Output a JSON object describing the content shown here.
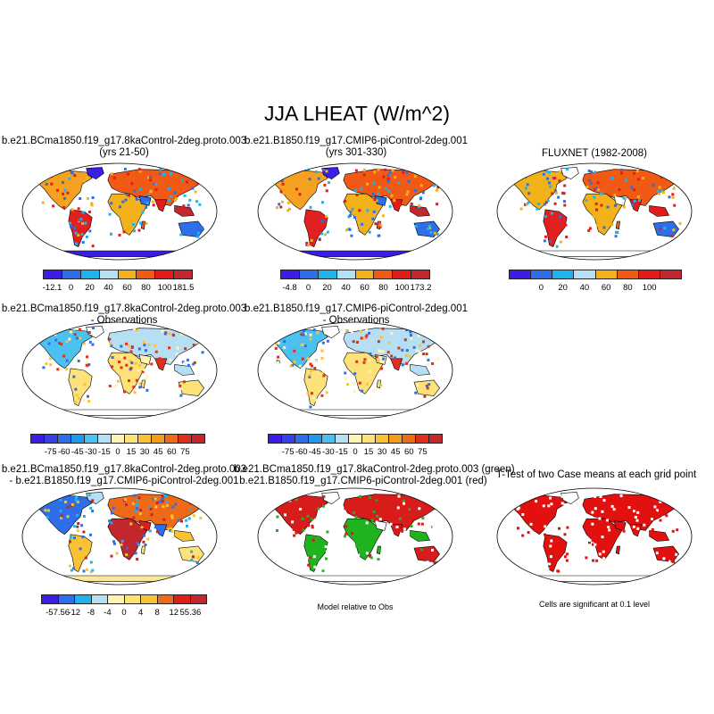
{
  "figure": {
    "title": "JJA LHEAT (W/m^2)"
  },
  "panels": [
    {
      "id": "p1",
      "title_lines": [
        "b.e21.BCma1850.f19_g17.8kaControl-2deg.proto.003",
        "(yrs 21-50)"
      ],
      "kind": "absolute",
      "ocean_fill": "#3a1ee6",
      "colorbar": {
        "colors": [
          "#3a1ee6",
          "#2e6ee8",
          "#1fb3ee",
          "#b7dff3",
          "#f3b21a",
          "#f05a15",
          "#e31b1b",
          "#c1272d"
        ],
        "labels": [
          "-12.1",
          "0",
          "20",
          "40",
          "60",
          "80",
          "100",
          "181.5"
        ]
      }
    },
    {
      "id": "p2",
      "title_lines": [
        "b.e21.B1850.f19_g17.CMIP6-piControl-2deg.001",
        "(yrs 301-330)"
      ],
      "kind": "absolute",
      "ocean_fill": "#3a1ee6",
      "colorbar": {
        "colors": [
          "#3a1ee6",
          "#2e6ee8",
          "#1fb3ee",
          "#b7dff3",
          "#f3b21a",
          "#f05a15",
          "#e31b1b",
          "#c1272d"
        ],
        "labels": [
          "-4.8",
          "0",
          "20",
          "40",
          "60",
          "80",
          "100",
          "173.2"
        ]
      }
    },
    {
      "id": "p3",
      "title_lines": [
        "FLUXNET (1982-2008)"
      ],
      "kind": "absolute",
      "ocean_fill": "none",
      "colorbar": {
        "colors": [
          "#3a1ee6",
          "#2e6ee8",
          "#1fb3ee",
          "#b7dff3",
          "#f3b21a",
          "#f05a15",
          "#e31b1b",
          "#c1272d"
        ],
        "labels": [
          "0",
          "20",
          "40",
          "60",
          "80",
          "100"
        ]
      }
    },
    {
      "id": "p4",
      "title_lines": [
        "b.e21.BCma1850.f19_g17.8kaControl-2deg.proto.003",
        "- Observations"
      ],
      "kind": "difference",
      "ocean_fill": "none",
      "colorbar": {
        "colors": [
          "#3a1ee6",
          "#3a40e8",
          "#2e6ee8",
          "#1f98ee",
          "#4cc1f0",
          "#b7dff3",
          "#fff4b3",
          "#fde27a",
          "#f8c235",
          "#f39b1b",
          "#ef6a16",
          "#e0301b",
          "#c1272d"
        ],
        "labels": [
          "-75",
          "-60",
          "-45",
          "-30",
          "-15",
          "0",
          "15",
          "30",
          "45",
          "60",
          "75"
        ]
      }
    },
    {
      "id": "p5",
      "title_lines": [
        "b.e21.B1850.f19_g17.CMIP6-piControl-2deg.001",
        "- Observations"
      ],
      "kind": "difference",
      "ocean_fill": "none",
      "colorbar": {
        "colors": [
          "#3a1ee6",
          "#3a40e8",
          "#2e6ee8",
          "#1f98ee",
          "#4cc1f0",
          "#b7dff3",
          "#fff4b3",
          "#fde27a",
          "#f8c235",
          "#f39b1b",
          "#ef6a16",
          "#e0301b",
          "#c1272d"
        ],
        "labels": [
          "-75",
          "-60",
          "-45",
          "-30",
          "-15",
          "0",
          "15",
          "30",
          "45",
          "60",
          "75"
        ]
      }
    },
    {
      "id": "p6",
      "title_lines": [
        "b.e21.BCma1850.f19_g17.8kaControl-2deg.proto.003",
        "- b.e21.B1850.f19_g17.CMIP6-piControl-2deg.001"
      ],
      "kind": "case-difference",
      "ocean_fill": "#fbe79a",
      "colorbar": {
        "colors": [
          "#3a1ee6",
          "#2e6ee8",
          "#1fb3ee",
          "#b7dff3",
          "#fff4b3",
          "#fde27a",
          "#f8c235",
          "#ef6a16",
          "#e31b1b",
          "#c1272d"
        ],
        "labels": [
          "-57.56",
          "-12",
          "-8",
          "-4",
          "0",
          "4",
          "8",
          "12",
          "55.36"
        ]
      }
    },
    {
      "id": "p7",
      "title_lines": [
        "b.e21.BCma1850.f19_g17.8kaControl-2deg.proto.003 (green)",
        "b.e21.B1850.f19_g17.CMIP6-piControl-2deg.001 (red)"
      ],
      "kind": "relative",
      "ocean_fill": "none",
      "note": "Model relative to Obs"
    },
    {
      "id": "p8",
      "title_lines": [
        "T-Test of two Case means at each grid point"
      ],
      "kind": "ttest",
      "ocean_fill": "none",
      "note": "Cells are significant at 0.1 level"
    }
  ]
}
